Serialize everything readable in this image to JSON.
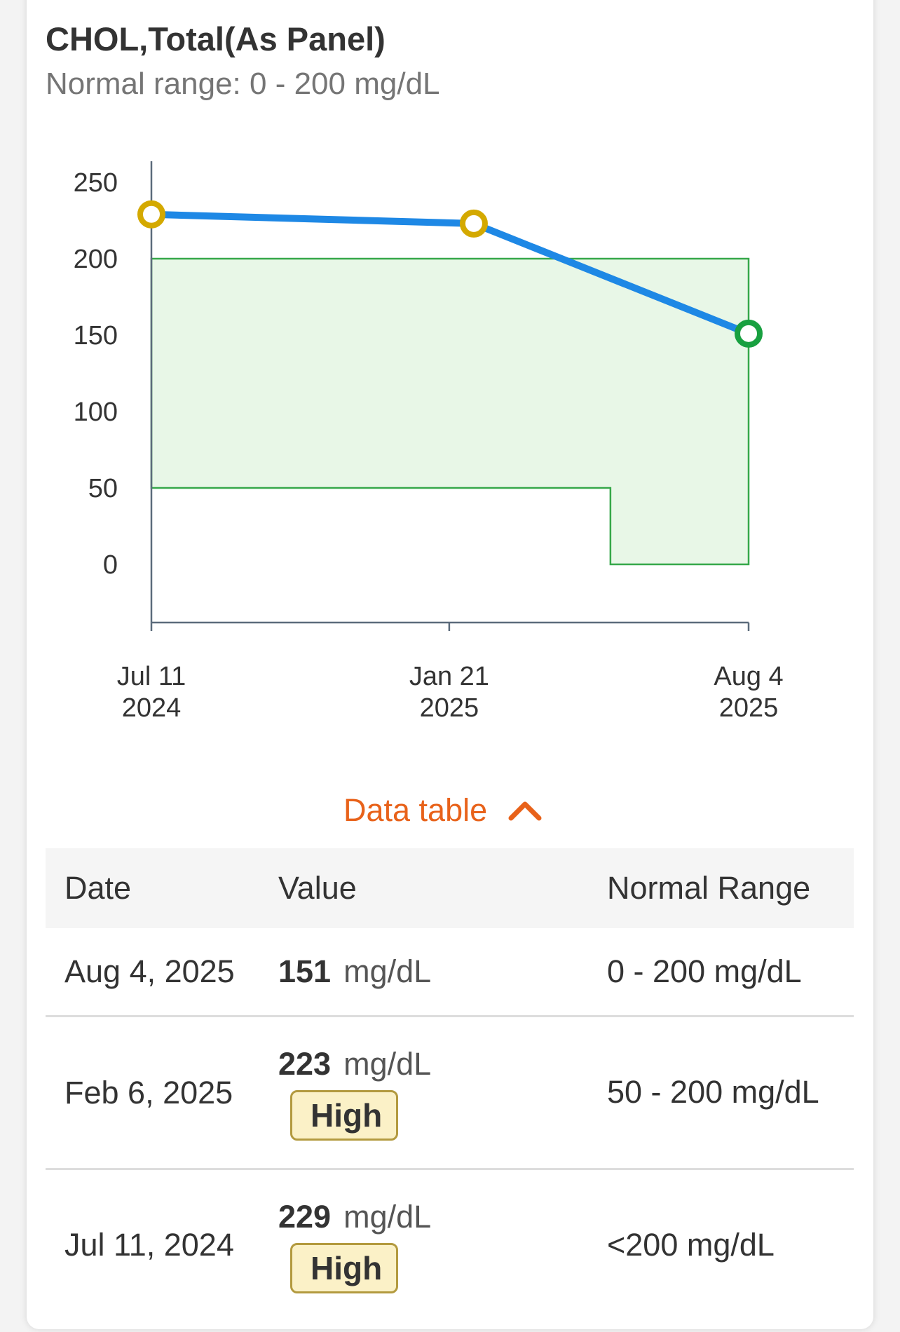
{
  "header": {
    "title": "CHOL,Total(As Panel)",
    "subtitle": "Normal range: 0 - 200 mg/dL"
  },
  "chart_data": {
    "type": "line",
    "title": "CHOL,Total(As Panel)",
    "xlabel": "",
    "ylabel": "",
    "ylim": [
      -37,
      250
    ],
    "yticks": [
      0,
      50,
      100,
      150,
      200,
      250
    ],
    "x_tick_labels": [
      {
        "date": "2024-07-11",
        "line1": "Jul 11",
        "line2": "2024"
      },
      {
        "date": "2025-01-21",
        "line1": "Jan 21",
        "line2": "2025"
      },
      {
        "date": "2025-08-04",
        "line1": "Aug 4",
        "line2": "2025"
      }
    ],
    "x_range": [
      "2024-07-11",
      "2025-08-04"
    ],
    "series": [
      {
        "points": [
          {
            "date": "2024-07-11",
            "value": 229,
            "status": "high"
          },
          {
            "date": "2025-02-06",
            "value": 223,
            "status": "high"
          },
          {
            "date": "2025-08-04",
            "value": 151,
            "status": "normal"
          }
        ]
      }
    ],
    "normal_band": [
      {
        "from": "2024-07-11",
        "to": "2025-05-06",
        "low": 50,
        "high": 200
      },
      {
        "from": "2025-05-06",
        "to": "2025-08-04",
        "low": 0,
        "high": 200
      }
    ],
    "colors": {
      "line": "#1e88e5",
      "high_point": "#d4a900",
      "normal_point": "#18a040",
      "band_fill": "#e8f7e7",
      "band_stroke": "#36a84a",
      "axis": "#5b6b7b"
    },
    "grid": false,
    "legend": "none"
  },
  "toggle": {
    "label": "Data table",
    "icon": "chevron-up-icon"
  },
  "table": {
    "headers": [
      "Date",
      "Value",
      "Normal Range"
    ],
    "rows": [
      {
        "date": "Aug 4, 2025",
        "value": "151",
        "unit": "mg/dL",
        "badge": "",
        "range": "0 - 200 mg/dL"
      },
      {
        "date": "Feb 6, 2025",
        "value": "223",
        "unit": "mg/dL",
        "badge": "High",
        "range": "50 - 200 mg/dL"
      },
      {
        "date": "Jul 11, 2024",
        "value": "229",
        "unit": "mg/dL",
        "badge": "High",
        "range": "<200 mg/dL"
      }
    ]
  }
}
